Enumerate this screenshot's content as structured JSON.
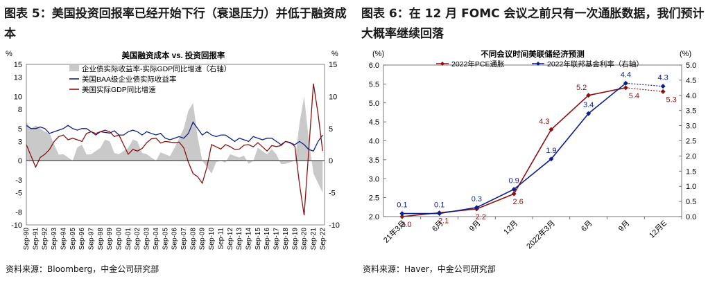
{
  "left": {
    "figure_title": "图表 5：美国投资回报率已经开始下行（衰退压力）并低于融资成本",
    "source": "资料来源：Bloomberg，中金公司研究部"
  },
  "right": {
    "figure_title": "图表 6：在 12 月 FOMC 会议之前只有一次通胀数据，我们预计大概率继续回落",
    "source": "资料来源：Haver，中金公司研究部"
  },
  "colors": {
    "gray_area": "#c9c9c9",
    "baa_line": "#0b1f8a",
    "gdp_line": "#8b1010",
    "pce_line": "#8b1010",
    "ffr_line": "#0b1f8a"
  },
  "chart_data": [
    {
      "type": "area+line",
      "title": "美国融资成本 vs. 投资回报率",
      "left_unit": "%",
      "right_unit": "%",
      "ylim_left": [
        -10,
        15
      ],
      "ylim_right": [
        -10,
        15
      ],
      "yticks_left": [
        "15",
        "13",
        "10",
        "8",
        "5",
        "3",
        "0",
        "-3",
        "-5",
        "-8",
        "-10"
      ],
      "yticks_right": [
        "15",
        "10",
        "5",
        "0",
        "-5",
        "-10"
      ],
      "x_years": [
        1990,
        1991,
        1992,
        1993,
        1994,
        1995,
        1996,
        1997,
        1998,
        1999,
        2000,
        2001,
        2002,
        2003,
        2004,
        2005,
        2006,
        2007,
        2008,
        2009,
        2010,
        2011,
        2012,
        2013,
        2014,
        2015,
        2016,
        2017,
        2018,
        2019,
        2020,
        2021,
        2022
      ],
      "x_tick_labels": [
        "Sep-90",
        "Sep-91",
        "Sep-92",
        "Sep-93",
        "Sep-94",
        "Sep-95",
        "Sep-96",
        "Sep-97",
        "Sep-98",
        "Sep-99",
        "Sep-00",
        "Sep-01",
        "Sep-02",
        "Sep-03",
        "Sep-04",
        "Sep-05",
        "Sep-06",
        "Sep-07",
        "Sep-08",
        "Sep-09",
        "Sep-10",
        "Sep-11",
        "Sep-12",
        "Sep-13",
        "Sep-14",
        "Sep-15",
        "Sep-16",
        "Sep-17",
        "Sep-18",
        "Sep-19",
        "Sep-20",
        "Sep-21",
        "Sep-22"
      ],
      "series": [
        {
          "name": "企业债实际收益率-实际GDP同比增速（右轴）",
          "kind": "area",
          "axis": "right",
          "values": [
            6,
            5.5,
            4.5,
            2.5,
            1,
            0,
            2.5,
            1,
            2,
            3,
            1,
            2,
            3,
            1,
            0,
            1,
            2,
            5,
            9,
            0,
            -2,
            0,
            1,
            0.5,
            -0.5,
            2,
            1,
            1,
            -0.5,
            0,
            10,
            -2,
            -5
          ]
        },
        {
          "name": "美国BAA级企业债实际收益率",
          "kind": "line",
          "axis": "left",
          "values": [
            5.5,
            5,
            5,
            4.5,
            5,
            5,
            5,
            4.5,
            4.5,
            4.3,
            4,
            4.5,
            4.5,
            4.5,
            4,
            3.5,
            3.5,
            3.5,
            6,
            4,
            4,
            4,
            3.5,
            3.5,
            3,
            3.5,
            3.5,
            3,
            3,
            2.5,
            2.5,
            1.5,
            4
          ]
        },
        {
          "name": "美国实际GDP同比增速",
          "kind": "line",
          "axis": "left",
          "values": [
            2.5,
            -1,
            1,
            3,
            4,
            3.5,
            3,
            4.5,
            4.5,
            4.5,
            4,
            1,
            1.5,
            2.8,
            3.5,
            3,
            2.8,
            2,
            -2,
            -3.5,
            2.5,
            1.8,
            2.2,
            1.8,
            2.5,
            2.8,
            1.5,
            2.2,
            3,
            2.2,
            -8.5,
            12,
            1.5
          ]
        }
      ]
    },
    {
      "type": "line",
      "title": "不同会议时间美联储经济预测",
      "left_unit": "(%)",
      "right_unit": "(%)",
      "ylim_left": [
        2.0,
        6.0
      ],
      "ylim_right": [
        0.0,
        5.0
      ],
      "yticks_left": [
        "6.0",
        "5.5",
        "5.0",
        "4.5",
        "4.0",
        "3.5",
        "3.0",
        "2.5",
        "2.0"
      ],
      "yticks_right": [
        "5.0",
        "4.5",
        "4.0",
        "3.5",
        "3.0",
        "2.5",
        "2.0",
        "1.5",
        "1.0",
        "0.5",
        "0.0"
      ],
      "categories": [
        "21年3月",
        "6月",
        "9月",
        "12月",
        "2022年3月",
        "6月",
        "9月",
        "12月E"
      ],
      "series": [
        {
          "name": "2022年PCE通胀",
          "axis": "left",
          "values": [
            2.0,
            2.1,
            2.2,
            2.6,
            4.3,
            5.2,
            5.4,
            5.3
          ],
          "labels": [
            "2.0",
            "2.1",
            "2.2",
            "2.6",
            "4.3",
            "5.2",
            "5.4",
            "5.3"
          ]
        },
        {
          "name": "2022年联邦基金利率（右轴）",
          "axis": "right",
          "values": [
            0.1,
            0.1,
            0.3,
            0.9,
            1.9,
            3.4,
            4.4,
            4.3
          ],
          "labels": [
            "0.1",
            "0.1",
            "0.3",
            "0.9",
            "1.9",
            "3.4",
            "4.4",
            "4.3"
          ]
        }
      ]
    }
  ]
}
